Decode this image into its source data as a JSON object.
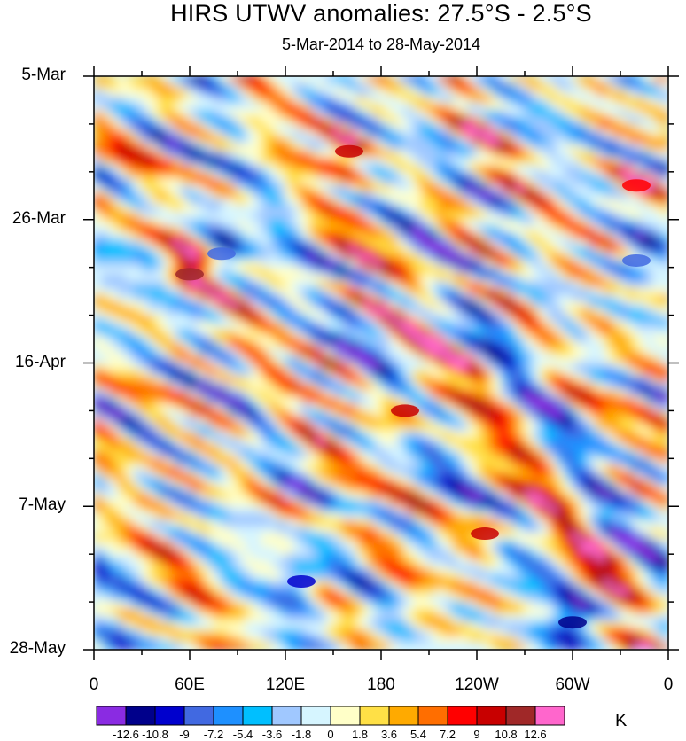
{
  "chart_data": {
    "type": "heatmap",
    "title": "HIRS UTWV anomalies: 27.5°S - 2.5°S",
    "subtitle": "5-Mar-2014 to 28-May-2014",
    "y_tick_labels": [
      "5-Mar",
      "26-Mar",
      "16-Apr",
      "7-May",
      "28-May"
    ],
    "x_tick_labels": [
      "0",
      "60E",
      "120E",
      "180",
      "120W",
      "60W",
      "0"
    ],
    "x_range_deg_east": [
      0,
      360
    ],
    "y_range": [
      "5-Mar-2014",
      "28-May-2014"
    ],
    "colorbar": {
      "units": "K",
      "levels": [
        "-12.6",
        "-10.8",
        "-9",
        "-7.2",
        "-5.4",
        "-3.6",
        "-1.8",
        "0",
        "1.8",
        "3.6",
        "5.4",
        "7.2",
        "9",
        "10.8",
        "12.6"
      ],
      "colors": [
        "#8a2be2",
        "#00008b",
        "#0000cd",
        "#4169e1",
        "#1e90ff",
        "#00bfff",
        "#a0c8ff",
        "#d6f5ff",
        "#ffffc8",
        "#ffe046",
        "#ffaa00",
        "#ff6e00",
        "#ff0000",
        "#c80000",
        "#a02828",
        "#ff66cc"
      ]
    },
    "features": [
      {
        "lon_deg_east": 160,
        "date": "16-Mar",
        "value_K": 10.0
      },
      {
        "lon_deg_east": 60,
        "date": "3-Apr",
        "value_K": 11.0
      },
      {
        "lon_deg_east": 195,
        "date": "23-Apr",
        "value_K": 9.5
      },
      {
        "lon_deg_east": 245,
        "date": "11-May",
        "value_K": 9.0
      },
      {
        "lon_deg_east": 340,
        "date": "21-Mar",
        "value_K": 8.0
      },
      {
        "lon_deg_east": 130,
        "date": "18-May",
        "value_K": -10.0
      },
      {
        "lon_deg_east": 300,
        "date": "24-May",
        "value_K": -11.0
      },
      {
        "lon_deg_east": 80,
        "date": "31-Mar",
        "value_K": -9.0
      },
      {
        "lon_deg_east": 340,
        "date": "1-Apr",
        "value_K": -9.0
      }
    ]
  }
}
